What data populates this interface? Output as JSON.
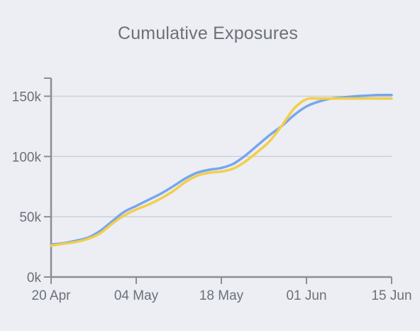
{
  "chart_data": {
    "type": "line",
    "title": "Cumulative Exposures",
    "xlabel": "",
    "ylabel": "",
    "x_ticks": [
      "20 Apr",
      "04 May",
      "18 May",
      "01 Jun",
      "15 Jun"
    ],
    "x_range_days": [
      0,
      56
    ],
    "y_ticks": [
      "0k",
      "50k",
      "100k",
      "150k"
    ],
    "ylim": [
      0,
      165000
    ],
    "grid": "horizontal",
    "legend": "none",
    "series": [
      {
        "color": "#78a6ec",
        "x_days": [
          0,
          2,
          4,
          6,
          8,
          10,
          12,
          14,
          16,
          18,
          20,
          22,
          24,
          26,
          28,
          30,
          32,
          34,
          36,
          38,
          40,
          42,
          44,
          46,
          48,
          50,
          52,
          54,
          56
        ],
        "values": [
          27000,
          28000,
          30000,
          32500,
          38000,
          46000,
          54000,
          59000,
          64000,
          69000,
          75000,
          81500,
          86500,
          89000,
          90500,
          94000,
          101000,
          109500,
          118000,
          125500,
          134500,
          141500,
          145500,
          148000,
          149000,
          150000,
          150500,
          151000,
          151000
        ]
      },
      {
        "color": "#f2cf49",
        "x_days": [
          0,
          2,
          4,
          6,
          8,
          10,
          12,
          14,
          16,
          18,
          20,
          22,
          24,
          26,
          28,
          30,
          32,
          34,
          36,
          38,
          40,
          42,
          44,
          46,
          48,
          50,
          52,
          54,
          56
        ],
        "values": [
          26000,
          27500,
          29000,
          31500,
          36000,
          44000,
          51000,
          56000,
          60000,
          65000,
          71000,
          78500,
          84000,
          86500,
          87500,
          90000,
          96000,
          104000,
          113000,
          126000,
          140000,
          147500,
          148000,
          148000,
          148000,
          148000,
          148000,
          148000,
          148000
        ]
      }
    ]
  }
}
